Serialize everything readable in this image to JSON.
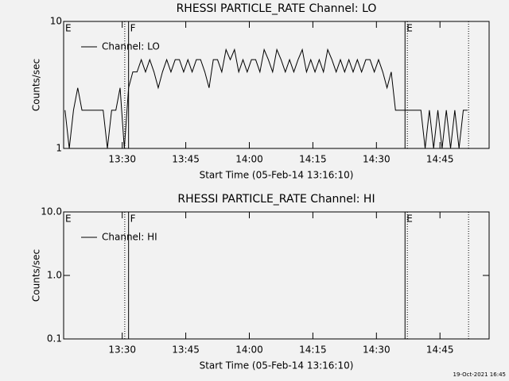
{
  "chart_data": [
    {
      "type": "line",
      "title": "RHESSI PARTICLE_RATE Channel: LO",
      "xlabel": "Start Time (05-Feb-14 13:16:10)",
      "ylabel": "Counts/sec",
      "log_y": true,
      "legend": "upper left",
      "xlim": [
        796.17,
        896.6
      ],
      "ylim": [
        1,
        10
      ],
      "xticks": [
        {
          "value": 810,
          "label": "13:30"
        },
        {
          "value": 825,
          "label": "13:45"
        },
        {
          "value": 840,
          "label": "14:00"
        },
        {
          "value": 855,
          "label": "14:15"
        },
        {
          "value": 870,
          "label": "14:30"
        },
        {
          "value": 885,
          "label": "14:45"
        }
      ],
      "yticks": [
        1,
        10
      ],
      "markers": [
        {
          "x": 796.17,
          "style": "solid",
          "label": "E"
        },
        {
          "x": 810.6,
          "style": "dotted"
        },
        {
          "x": 811.5,
          "style": "solid",
          "label": "F"
        },
        {
          "x": 876.75,
          "style": "solid",
          "label": "E"
        },
        {
          "x": 877.3,
          "style": "dotted"
        },
        {
          "x": 891.75,
          "style": "dotted"
        }
      ],
      "x": [
        796.5,
        797.5,
        798.5,
        799.5,
        800.5,
        801.5,
        802.5,
        803.5,
        804.5,
        805.5,
        806.5,
        807.5,
        808.5,
        809.5,
        810.5,
        811.5,
        812.5,
        813.5,
        814.5,
        815.5,
        816.5,
        817.5,
        818.5,
        819.5,
        820.5,
        821.5,
        822.5,
        823.5,
        824.5,
        825.5,
        826.5,
        827.5,
        828.5,
        829.5,
        830.5,
        831.5,
        832.5,
        833.5,
        834.5,
        835.5,
        836.5,
        837.5,
        838.5,
        839.5,
        840.5,
        841.5,
        842.5,
        843.5,
        844.5,
        845.5,
        846.5,
        847.5,
        848.5,
        849.5,
        850.5,
        851.5,
        852.5,
        853.5,
        854.5,
        855.5,
        856.5,
        857.5,
        858.5,
        859.5,
        860.5,
        861.5,
        862.5,
        863.5,
        864.5,
        865.5,
        866.5,
        867.5,
        868.5,
        869.5,
        870.5,
        871.5,
        872.5,
        873.5,
        874.5,
        875.5,
        876.5,
        877.5,
        878.5,
        879.5,
        880.5,
        881.5,
        882.5,
        883.5,
        884.5,
        885.5,
        886.5,
        887.5,
        888.5,
        889.5,
        890.5,
        891.5
      ],
      "series": [
        {
          "name": "Channel: LO",
          "color": "#000000",
          "values": [
            2,
            1,
            2,
            3,
            2,
            2,
            2,
            2,
            2,
            2,
            1,
            2,
            2,
            3,
            1,
            3,
            4,
            4,
            5,
            4,
            5,
            4,
            3,
            4,
            5,
            4,
            5,
            5,
            4,
            5,
            4,
            5,
            5,
            4,
            3,
            5,
            5,
            4,
            6,
            5,
            6,
            4,
            5,
            4,
            5,
            5,
            4,
            6,
            5,
            4,
            6,
            5,
            4,
            5,
            4,
            5,
            6,
            4,
            5,
            4,
            5,
            4,
            6,
            5,
            4,
            5,
            4,
            5,
            4,
            5,
            4,
            5,
            5,
            4,
            5,
            4,
            3,
            4,
            2,
            2,
            2,
            2,
            2,
            2,
            2,
            1,
            2,
            1,
            2,
            1,
            2,
            1,
            2,
            1,
            2,
            2
          ]
        }
      ]
    },
    {
      "type": "line",
      "title": "RHESSI PARTICLE_RATE Channel: HI",
      "xlabel": "Start Time (05-Feb-14 13:16:10)",
      "ylabel": "Counts/sec",
      "log_y": true,
      "legend": "upper left",
      "xlim": [
        796.17,
        896.6
      ],
      "ylim": [
        0.1,
        10
      ],
      "xticks": [
        {
          "value": 810,
          "label": "13:30"
        },
        {
          "value": 825,
          "label": "13:45"
        },
        {
          "value": 840,
          "label": "14:00"
        },
        {
          "value": 855,
          "label": "14:15"
        },
        {
          "value": 870,
          "label": "14:30"
        },
        {
          "value": 885,
          "label": "14:45"
        }
      ],
      "yticks": [
        0.1,
        {
          "value": 1,
          "label": "1.0"
        },
        {
          "value": 10,
          "label": "10.0"
        }
      ],
      "markers": [
        {
          "x": 796.17,
          "style": "solid",
          "label": "E"
        },
        {
          "x": 810.6,
          "style": "dotted"
        },
        {
          "x": 811.5,
          "style": "solid",
          "label": "F"
        },
        {
          "x": 876.75,
          "style": "solid",
          "label": "E"
        },
        {
          "x": 877.3,
          "style": "dotted"
        },
        {
          "x": 891.75,
          "style": "dotted"
        }
      ],
      "x": [],
      "series": [
        {
          "name": "Channel: HI",
          "color": "#000000",
          "values": []
        }
      ]
    }
  ],
  "footer": "19-Oct-2021 16:45"
}
